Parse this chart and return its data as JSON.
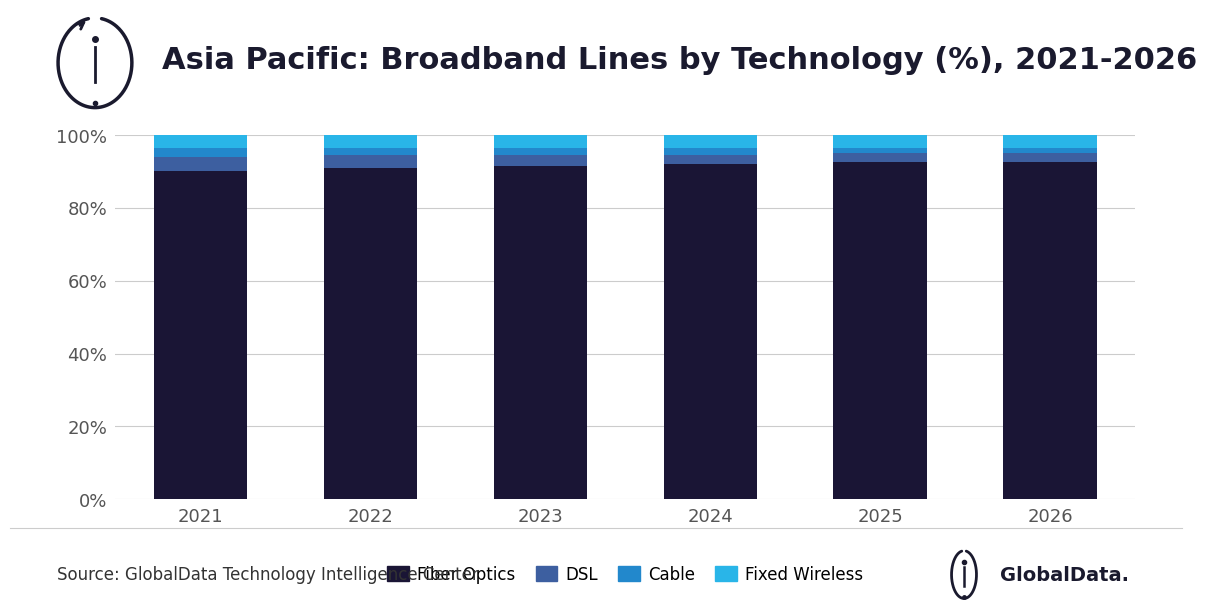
{
  "title": "Asia Pacific: Broadband Lines by Technology (%), 2021-2026",
  "years": [
    "2021",
    "2022",
    "2023",
    "2024",
    "2025",
    "2026"
  ],
  "series": {
    "Fiber Optics": [
      90.0,
      91.0,
      91.5,
      92.0,
      92.5,
      92.5
    ],
    "DSL": [
      4.0,
      3.5,
      3.0,
      2.5,
      2.5,
      2.5
    ],
    "Cable": [
      2.5,
      2.0,
      2.0,
      2.0,
      1.5,
      1.5
    ],
    "Fixed Wireless": [
      3.5,
      3.5,
      3.5,
      3.5,
      3.5,
      3.5
    ]
  },
  "colors": {
    "Fiber Optics": "#1a1535",
    "DSL": "#3d5fa0",
    "Cable": "#2288cc",
    "Fixed Wireless": "#29b5e8"
  },
  "ylim": [
    0,
    100
  ],
  "yticks": [
    0,
    20,
    40,
    60,
    80,
    100
  ],
  "yticklabels": [
    "0%",
    "20%",
    "40%",
    "60%",
    "80%",
    "100%"
  ],
  "background_color": "#ffffff",
  "grid_color": "#cccccc",
  "source_text": "Source: GlobalData Technology Intelligence Center",
  "bar_width": 0.55,
  "title_fontsize": 22,
  "tick_fontsize": 13,
  "legend_fontsize": 12,
  "source_fontsize": 12,
  "title_color": "#1a1a2e",
  "tick_color": "#555555"
}
